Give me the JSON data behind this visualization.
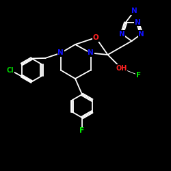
{
  "background_color": "#000000",
  "bond_color": "#ffffff",
  "atom_colors": {
    "N": "#1111ff",
    "O": "#ff2222",
    "F": "#00ee00",
    "Cl": "#00cc00",
    "C": "#ffffff"
  },
  "lw": 1.3,
  "fontsize": 7.5
}
